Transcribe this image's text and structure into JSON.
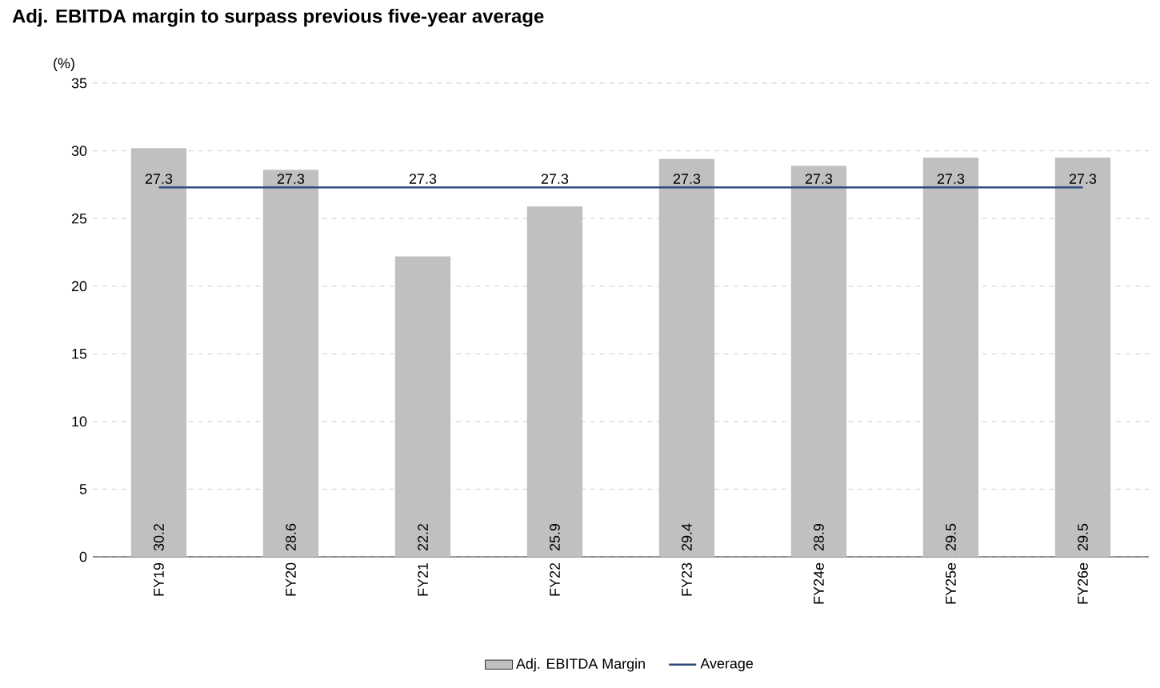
{
  "chart_data": {
    "type": "bar",
    "title": "Adj. EBITDA margin to surpass previous five-year average",
    "ylabel": "(%)",
    "categories": [
      "FY19",
      "FY20",
      "FY21",
      "FY22",
      "FY23",
      "FY24e",
      "FY25e",
      "FY26e"
    ],
    "series": [
      {
        "name": "Adj. EBITDA Margin",
        "color": "#c0c0c0",
        "values": [
          30.2,
          28.6,
          22.2,
          25.9,
          29.4,
          28.9,
          29.5,
          29.5
        ]
      },
      {
        "name": "Average",
        "type": "line",
        "color": "#2e4a7a",
        "values": [
          27.3,
          27.3,
          27.3,
          27.3,
          27.3,
          27.3,
          27.3,
          27.3
        ]
      }
    ],
    "ylim": [
      0,
      35
    ],
    "yticks": [
      0,
      5,
      10,
      15,
      20,
      25,
      30,
      35
    ],
    "grid": "y",
    "legend": "bottom",
    "data_labels": true
  }
}
